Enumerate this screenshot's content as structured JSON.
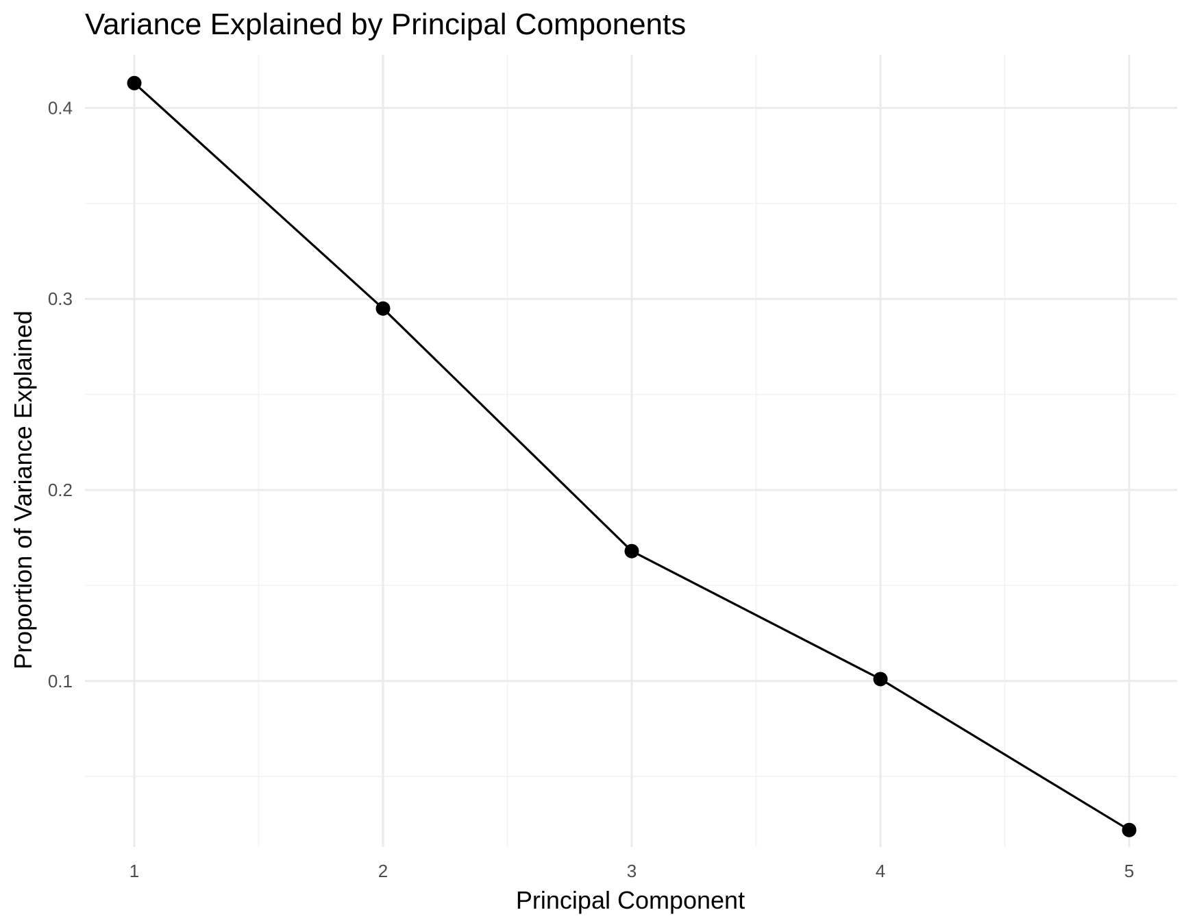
{
  "chart_data": {
    "type": "line",
    "title": "Variance Explained by Principal Components",
    "xlabel": "Principal Component",
    "ylabel": "Proportion of Variance Explained",
    "x": [
      1,
      2,
      3,
      4,
      5
    ],
    "values": [
      0.413,
      0.295,
      0.168,
      0.101,
      0.022
    ],
    "x_ticks": [
      1,
      2,
      3,
      4,
      5
    ],
    "x_tick_labels": [
      "1",
      "2",
      "3",
      "4",
      "5"
    ],
    "y_ticks": [
      0.1,
      0.2,
      0.3,
      0.4
    ],
    "y_tick_labels": [
      "0.1",
      "0.2",
      "0.3",
      "0.4"
    ],
    "xlim": [
      0.8,
      5.2
    ],
    "ylim": [
      0.0131,
      0.4278
    ],
    "grid": true,
    "line_color": "#000000",
    "point_color": "#000000"
  }
}
